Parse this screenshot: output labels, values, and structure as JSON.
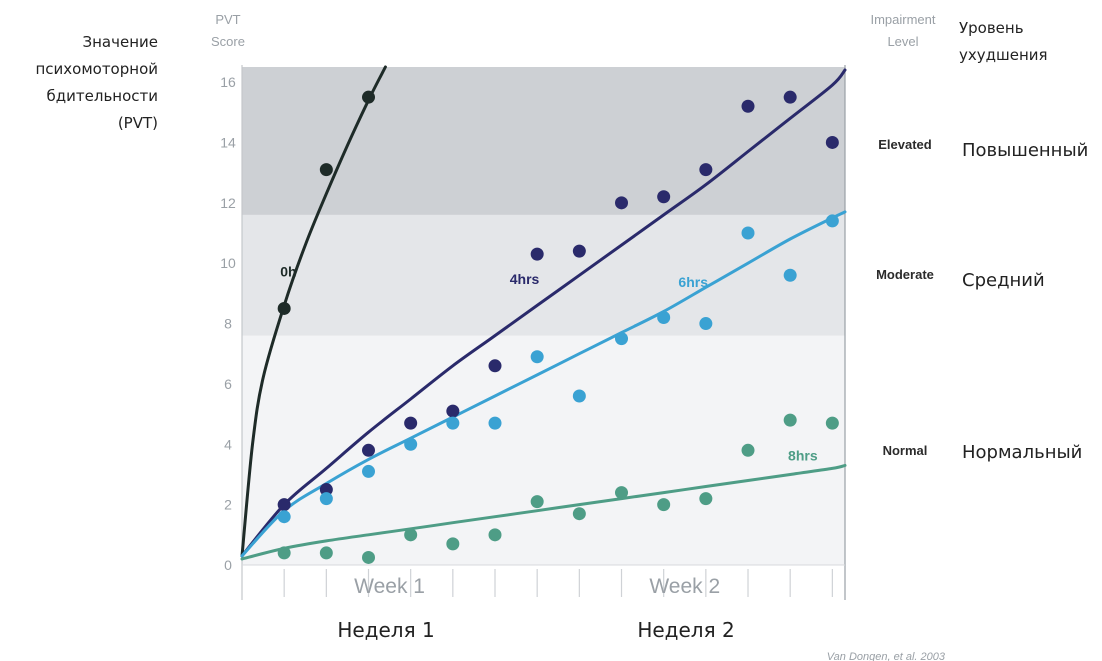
{
  "labels": {
    "y_label_en": [
      "PVT",
      "Score"
    ],
    "y_label_ru": [
      "Значение",
      "психомоторной",
      "бдительности",
      "(PVT)"
    ],
    "impairment_en": [
      "Impairment",
      "Level"
    ],
    "impairment_ru": [
      "Уровень",
      "ухудшения"
    ],
    "week_ru": [
      "Неделя 1",
      "Неделя 2"
    ],
    "source": "Van Dongen, et al. 2003"
  },
  "chart_data": {
    "type": "scatter",
    "ylim": [
      0,
      16.5
    ],
    "xlim": [
      0,
      14.3
    ],
    "y_ticks": [
      0,
      2,
      4,
      6,
      8,
      10,
      12,
      14,
      16
    ],
    "x_tick_labels": [
      {
        "x": 3.5,
        "label": "Week 1"
      },
      {
        "x": 10.5,
        "label": "Week 2"
      }
    ],
    "bands": [
      {
        "name": "Normal",
        "name_ru": "Нормальный",
        "from": 0,
        "to": 7.6,
        "color": "#f3f4f6"
      },
      {
        "name": "Moderate",
        "name_ru": "Средний",
        "from": 7.6,
        "to": 11.6,
        "color": "#e4e6e9"
      },
      {
        "name": "Elevated",
        "name_ru": "Повышенный",
        "from": 11.6,
        "to": 16.5,
        "color": "#cdd0d4"
      }
    ],
    "series": [
      {
        "name": "0h",
        "color": "#1e2b28",
        "x": [
          1,
          2,
          3
        ],
        "y": [
          8.5,
          13.1,
          15.5
        ],
        "curve": [
          [
            0,
            0.3
          ],
          [
            0.25,
            4.0
          ],
          [
            0.5,
            6.2
          ],
          [
            1,
            8.6
          ],
          [
            1.5,
            10.6
          ],
          [
            2,
            12.3
          ],
          [
            2.5,
            13.9
          ],
          [
            3,
            15.4
          ],
          [
            3.4,
            16.5
          ]
        ],
        "label_at": [
          1.1,
          9.6
        ]
      },
      {
        "name": "4hrs",
        "color": "#2a2a6b",
        "x": [
          1,
          2,
          3,
          4,
          5,
          6,
          7,
          8,
          9,
          10,
          11,
          12,
          13,
          14
        ],
        "y": [
          2.0,
          2.5,
          3.8,
          4.7,
          5.1,
          6.6,
          10.3,
          10.4,
          12.0,
          12.2,
          13.1,
          15.2,
          15.5,
          14.0
        ],
        "curve": [
          [
            0,
            0.3
          ],
          [
            1,
            2.0
          ],
          [
            2,
            3.2
          ],
          [
            3,
            4.4
          ],
          [
            4,
            5.5
          ],
          [
            5,
            6.6
          ],
          [
            6,
            7.6
          ],
          [
            7,
            8.6
          ],
          [
            8,
            9.6
          ],
          [
            9,
            10.6
          ],
          [
            10,
            11.6
          ],
          [
            11,
            12.6
          ],
          [
            12,
            13.7
          ],
          [
            13,
            14.8
          ],
          [
            14,
            15.9
          ],
          [
            14.3,
            16.4
          ]
        ],
        "label_at": [
          6.7,
          9.35
        ]
      },
      {
        "name": "6hrs",
        "color": "#3aa2d3",
        "x": [
          1,
          2,
          3,
          4,
          5,
          6,
          7,
          8,
          9,
          10,
          11,
          12,
          13,
          14
        ],
        "y": [
          1.6,
          2.2,
          3.1,
          4.0,
          4.7,
          4.7,
          6.9,
          5.6,
          7.5,
          8.2,
          8.0,
          11.0,
          9.6,
          11.4
        ],
        "curve": [
          [
            0,
            0.3
          ],
          [
            1,
            1.8
          ],
          [
            2,
            2.7
          ],
          [
            3,
            3.5
          ],
          [
            4,
            4.2
          ],
          [
            5,
            4.9
          ],
          [
            6,
            5.6
          ],
          [
            7,
            6.3
          ],
          [
            8,
            7.0
          ],
          [
            9,
            7.7
          ],
          [
            10,
            8.4
          ],
          [
            11,
            9.2
          ],
          [
            12,
            10.0
          ],
          [
            13,
            10.8
          ],
          [
            14,
            11.5
          ],
          [
            14.3,
            11.7
          ]
        ],
        "label_at": [
          10.7,
          9.25
        ]
      },
      {
        "name": "8hrs",
        "color": "#4e9d86",
        "x": [
          1,
          2,
          3,
          4,
          5,
          6,
          7,
          8,
          9,
          10,
          11,
          12,
          13,
          14
        ],
        "y": [
          0.4,
          0.4,
          0.25,
          1.0,
          0.7,
          1.0,
          2.1,
          1.7,
          2.4,
          2.0,
          2.2,
          3.8,
          4.8,
          4.7
        ],
        "curve": [
          [
            0,
            0.2
          ],
          [
            1,
            0.55
          ],
          [
            2,
            0.8
          ],
          [
            3,
            1.0
          ],
          [
            4,
            1.2
          ],
          [
            5,
            1.4
          ],
          [
            6,
            1.6
          ],
          [
            7,
            1.8
          ],
          [
            8,
            2.0
          ],
          [
            9,
            2.2
          ],
          [
            10,
            2.4
          ],
          [
            11,
            2.6
          ],
          [
            12,
            2.8
          ],
          [
            13,
            3.0
          ],
          [
            14,
            3.2
          ],
          [
            14.3,
            3.3
          ]
        ],
        "label_at": [
          13.3,
          3.5
        ]
      }
    ]
  }
}
